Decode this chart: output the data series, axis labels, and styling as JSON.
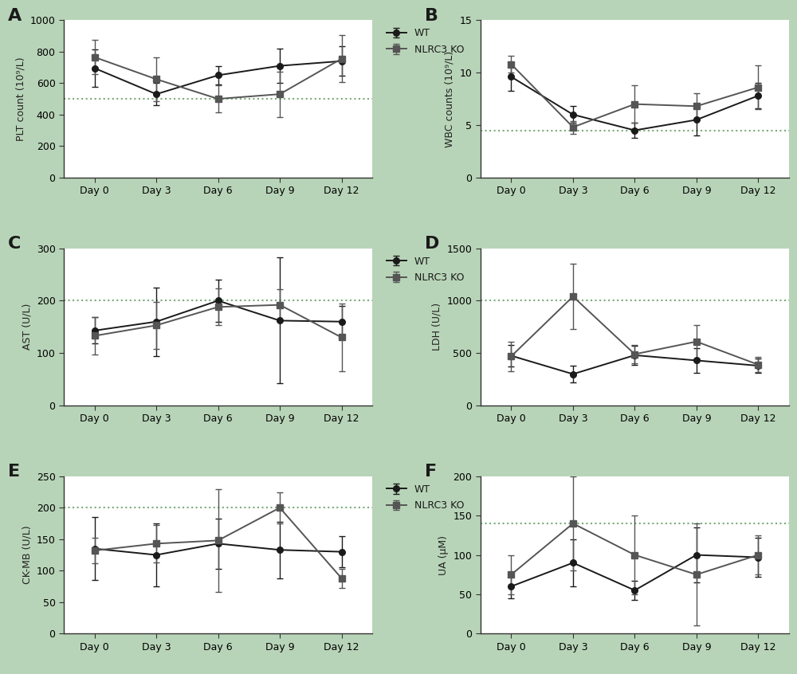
{
  "background_color": "#b8d4b8",
  "plot_bg": "#ffffff",
  "wt_color": "#1a1a1a",
  "ko_color": "#555555",
  "dotted_line_color": "#7aaa7a",
  "x_labels": [
    "Day 0",
    "Day 3",
    "Day 6",
    "Day 9",
    "Day 12"
  ],
  "x_vals": [
    0,
    1,
    2,
    3,
    4
  ],
  "A": {
    "label": "A",
    "ylabel": "PLT count (10⁹/L)",
    "ylim": [
      0,
      1000
    ],
    "yticks": [
      0,
      200,
      400,
      600,
      800,
      1000
    ],
    "hline": 500,
    "wt_y": [
      695,
      530,
      650,
      710,
      740
    ],
    "wt_err": [
      120,
      70,
      60,
      110,
      95
    ],
    "ko_y": [
      765,
      625,
      500,
      530,
      755
    ],
    "ko_err": [
      110,
      140,
      85,
      145,
      150
    ]
  },
  "B": {
    "label": "B",
    "ylabel": "WBC counts (10⁹/L)",
    "ylim": [
      0,
      15
    ],
    "yticks": [
      0,
      5,
      10,
      15
    ],
    "hline": 4.5,
    "wt_y": [
      9.6,
      6.0,
      4.5,
      5.5,
      7.8
    ],
    "wt_err": [
      1.3,
      0.8,
      0.7,
      1.5,
      1.2
    ],
    "ko_y": [
      10.8,
      4.8,
      7.0,
      6.8,
      8.6
    ],
    "ko_err": [
      0.8,
      0.6,
      1.8,
      1.2,
      2.1
    ]
  },
  "C": {
    "label": "C",
    "ylabel": "AST (U/L)",
    "ylim": [
      0,
      300
    ],
    "yticks": [
      0,
      100,
      200,
      300
    ],
    "hline": 200,
    "wt_y": [
      143,
      160,
      200,
      162,
      160
    ],
    "wt_err": [
      25,
      65,
      40,
      120,
      30
    ],
    "ko_y": [
      133,
      153,
      188,
      192,
      130
    ],
    "ko_err": [
      35,
      45,
      35,
      30,
      65
    ]
  },
  "D": {
    "label": "D",
    "ylabel": "LDH (U/L)",
    "ylim": [
      0,
      1500
    ],
    "yticks": [
      0,
      500,
      1000,
      1500
    ],
    "hline": 1000,
    "wt_y": [
      475,
      300,
      480,
      430,
      380
    ],
    "wt_err": [
      100,
      80,
      90,
      115,
      70
    ],
    "ko_y": [
      470,
      1040,
      490,
      610,
      390
    ],
    "ko_err": [
      140,
      310,
      90,
      160,
      70
    ]
  },
  "E": {
    "label": "E",
    "ylabel": "CK-MB (U/L)",
    "ylim": [
      0,
      250
    ],
    "yticks": [
      0,
      50,
      100,
      150,
      200,
      250
    ],
    "hline": 200,
    "wt_y": [
      135,
      125,
      143,
      133,
      130
    ],
    "wt_err": [
      50,
      50,
      40,
      45,
      25
    ],
    "ko_y": [
      132,
      143,
      148,
      200,
      88
    ],
    "ko_err": [
      20,
      30,
      82,
      25,
      15
    ]
  },
  "F": {
    "label": "F",
    "ylabel": "UA (μM)",
    "ylim": [
      0,
      200
    ],
    "yticks": [
      0,
      50,
      100,
      150,
      200
    ],
    "hline": 140,
    "wt_y": [
      60,
      90,
      55,
      100,
      97
    ],
    "wt_err": [
      15,
      30,
      12,
      35,
      25
    ],
    "ko_y": [
      75,
      140,
      100,
      75,
      100
    ],
    "ko_err": [
      25,
      60,
      50,
      65,
      25
    ]
  }
}
